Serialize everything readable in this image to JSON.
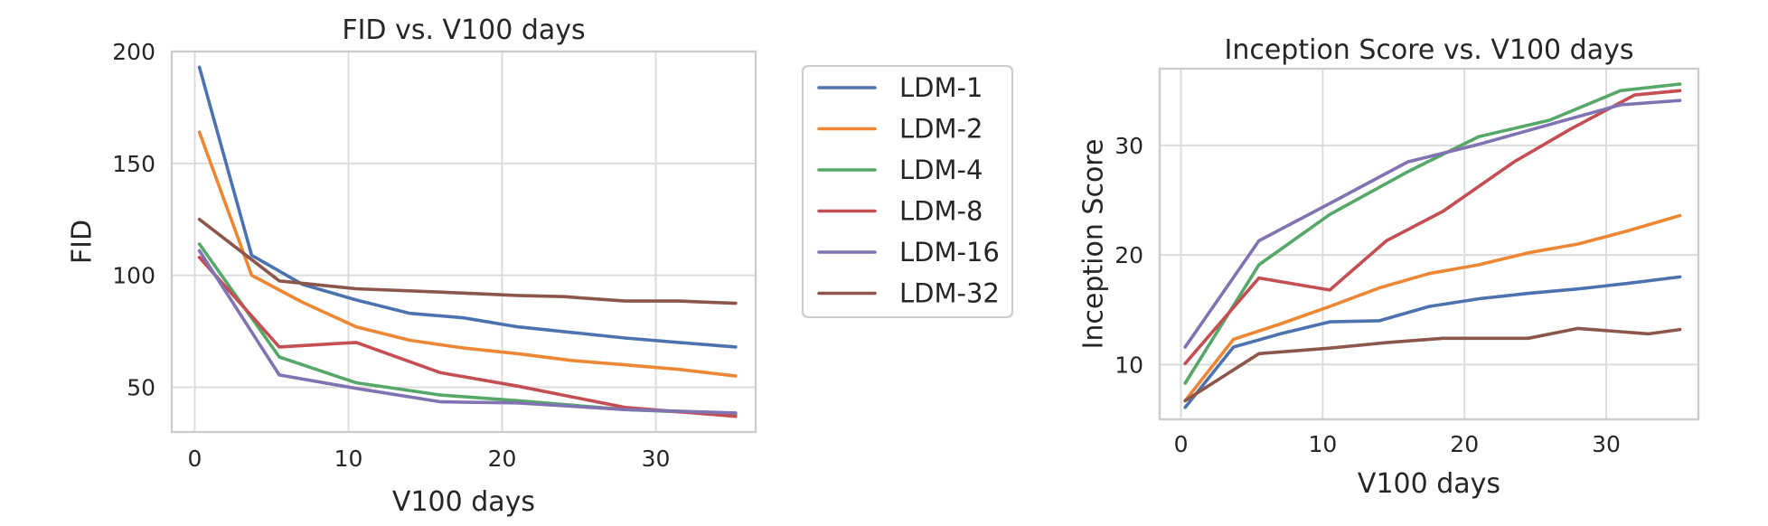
{
  "chart_data": [
    {
      "type": "line",
      "title": "FID vs. V100 days",
      "xlabel": "V100 days",
      "ylabel": "FID",
      "xlim": [
        -1.5,
        36.5
      ],
      "ylim": [
        30,
        200
      ],
      "xticks": [
        0,
        10,
        20,
        30
      ],
      "yticks": [
        50,
        100,
        150,
        200
      ],
      "grid": true,
      "legend": "outside-right",
      "series": [
        {
          "name": "LDM-1",
          "color": "#4c72b0",
          "x": [
            0.3,
            3.7,
            7,
            10.5,
            14,
            17.5,
            21,
            24.5,
            28,
            31.5,
            35.2
          ],
          "y": [
            193,
            109,
            96,
            89,
            83,
            81,
            77,
            74.5,
            72,
            70,
            68
          ]
        },
        {
          "name": "LDM-2",
          "color": "#ee8733",
          "x": [
            0.3,
            3.7,
            7,
            10.5,
            14,
            17.5,
            21,
            24.5,
            28,
            31.5,
            35.2
          ],
          "y": [
            164,
            100,
            88,
            77,
            71,
            67.5,
            65,
            62,
            60,
            58,
            55
          ]
        },
        {
          "name": "LDM-4",
          "color": "#55a868",
          "x": [
            0.3,
            5.5,
            10.5,
            16,
            21,
            28,
            35.2
          ],
          "y": [
            114,
            63.5,
            52,
            46.5,
            44,
            40,
            38
          ]
        },
        {
          "name": "LDM-8",
          "color": "#c44e52",
          "x": [
            0.3,
            5.5,
            10.5,
            16,
            21,
            28,
            35.2
          ],
          "y": [
            108,
            68,
            70,
            56.5,
            50.5,
            41,
            37
          ]
        },
        {
          "name": "LDM-16",
          "color": "#8172b2",
          "x": [
            0.3,
            5.5,
            10.5,
            16,
            21,
            28,
            35.2
          ],
          "y": [
            111,
            55.5,
            49.5,
            43.5,
            43,
            40,
            38.5
          ]
        },
        {
          "name": "LDM-32",
          "color": "#8c564b",
          "x": [
            0.3,
            5.5,
            10.5,
            16,
            21,
            24,
            28,
            31.5,
            35.2
          ],
          "y": [
            125,
            97.5,
            94,
            92.5,
            91,
            90.5,
            88.5,
            88.5,
            87.5
          ]
        }
      ]
    },
    {
      "type": "line",
      "title": "Inception Score vs. V100 days",
      "xlabel": "V100 days",
      "ylabel": "Inception Score",
      "xlim": [
        -1.5,
        36.5
      ],
      "ylim": [
        5,
        37
      ],
      "xticks": [
        0,
        10,
        20,
        30
      ],
      "yticks": [
        10,
        20,
        30
      ],
      "grid": true,
      "legend": "none",
      "series": [
        {
          "name": "LDM-1",
          "color": "#4c72b0",
          "x": [
            0.3,
            3.7,
            7,
            10.5,
            14,
            17.5,
            21,
            24.5,
            28,
            31.5,
            35.2
          ],
          "y": [
            6.1,
            11.6,
            12.8,
            13.9,
            14,
            15.3,
            16,
            16.5,
            16.9,
            17.4,
            18
          ]
        },
        {
          "name": "LDM-2",
          "color": "#ee8733",
          "x": [
            0.3,
            3.7,
            7,
            10.5,
            14,
            17.5,
            21,
            24.5,
            28,
            31.5,
            35.2
          ],
          "y": [
            6.7,
            12.3,
            13.7,
            15.3,
            17,
            18.3,
            19.1,
            20.2,
            21,
            22.2,
            23.6
          ]
        },
        {
          "name": "LDM-4",
          "color": "#55a868",
          "x": [
            0.3,
            5.5,
            10.5,
            16,
            21,
            26,
            31,
            35.2
          ],
          "y": [
            8.3,
            19.1,
            23.7,
            27.6,
            30.8,
            32.3,
            35,
            35.6
          ]
        },
        {
          "name": "LDM-8",
          "color": "#c44e52",
          "x": [
            0.3,
            5.5,
            10.5,
            14.5,
            18.5,
            23.5,
            27.5,
            32,
            35.2
          ],
          "y": [
            10.1,
            17.9,
            16.8,
            21.3,
            24,
            28.5,
            31.5,
            34.6,
            35
          ]
        },
        {
          "name": "LDM-16",
          "color": "#8172b2",
          "x": [
            0.3,
            5.5,
            10.5,
            16,
            21,
            26,
            31,
            35.2
          ],
          "y": [
            11.6,
            21.3,
            24.7,
            28.5,
            30.1,
            31.9,
            33.7,
            34.1
          ]
        },
        {
          "name": "LDM-32",
          "color": "#8c564b",
          "x": [
            0.3,
            5.5,
            10.5,
            14.5,
            18.5,
            21,
            24.5,
            28,
            33,
            35.2
          ],
          "y": [
            6.7,
            11,
            11.5,
            12,
            12.4,
            12.4,
            12.4,
            13.3,
            12.8,
            13.2
          ]
        }
      ]
    }
  ]
}
